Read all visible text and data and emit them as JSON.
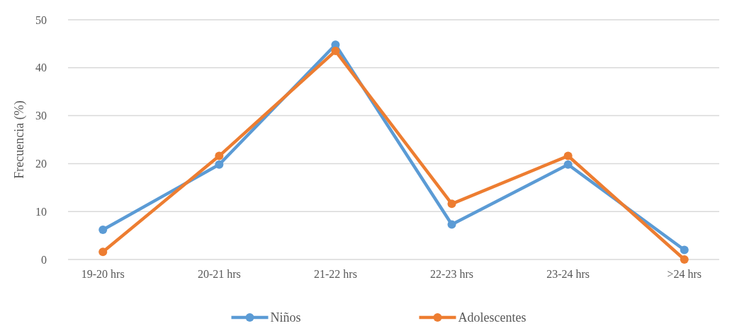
{
  "chart_data": {
    "type": "line",
    "ylabel": "Frecuencia (%)",
    "categories": [
      "19-20 hrs",
      "20-21 hrs",
      "21-22 hrs",
      "22-23 hrs",
      "23-24 hrs",
      ">24 hrs"
    ],
    "series": [
      {
        "name": "Niños",
        "color": "#5b9bd5",
        "values": [
          6.2,
          19.8,
          44.8,
          7.3,
          19.8,
          2.0
        ]
      },
      {
        "name": "Adolescentes",
        "color": "#ed7d31",
        "values": [
          1.6,
          21.6,
          43.5,
          11.6,
          21.6,
          0
        ]
      }
    ],
    "ylim": [
      0,
      50
    ],
    "yticks": [
      0,
      10,
      20,
      30,
      40,
      50
    ],
    "grid": "y",
    "legend": "bottom",
    "marker": "circle",
    "line_style": "solid"
  }
}
